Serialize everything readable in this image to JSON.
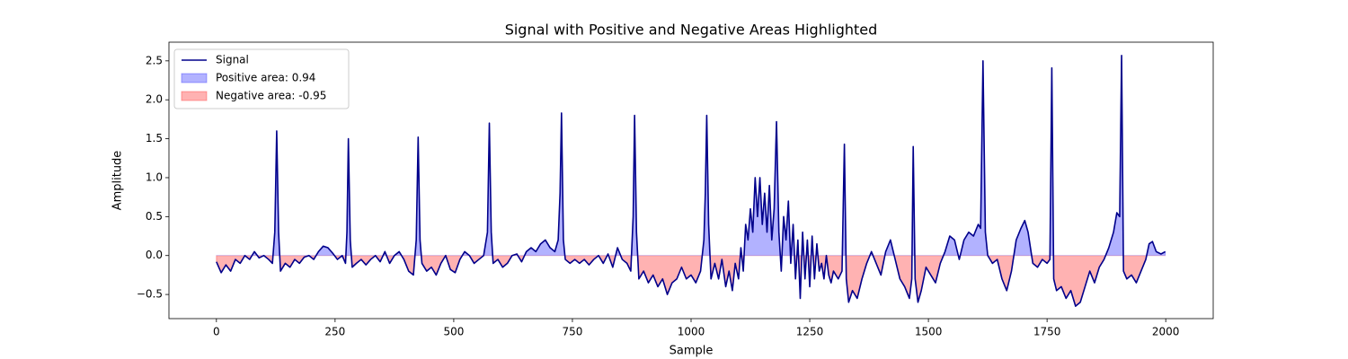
{
  "chart_data": {
    "type": "line",
    "title": "Signal with Positive and Negative Areas Highlighted",
    "xlabel": "Sample",
    "ylabel": "Amplitude",
    "x": [
      0,
      10,
      20,
      30,
      40,
      50,
      60,
      70,
      80,
      90,
      100,
      110,
      118,
      123,
      127,
      131,
      135,
      145,
      155,
      165,
      175,
      185,
      195,
      205,
      215,
      225,
      235,
      245,
      255,
      265,
      272,
      275,
      278,
      282,
      286,
      295,
      305,
      315,
      325,
      335,
      345,
      355,
      365,
      375,
      385,
      395,
      405,
      415,
      421,
      425,
      429,
      433,
      443,
      453,
      463,
      473,
      483,
      493,
      503,
      513,
      523,
      533,
      543,
      553,
      563,
      571,
      575,
      579,
      583,
      593,
      603,
      613,
      623,
      633,
      643,
      653,
      663,
      673,
      683,
      693,
      703,
      713,
      720,
      724,
      727,
      731,
      735,
      745,
      755,
      765,
      775,
      785,
      795,
      805,
      815,
      825,
      835,
      845,
      855,
      865,
      873,
      878,
      881,
      885,
      890,
      900,
      910,
      920,
      930,
      940,
      950,
      960,
      970,
      980,
      990,
      1000,
      1010,
      1020,
      1027,
      1030,
      1033,
      1037,
      1042,
      1050,
      1058,
      1065,
      1073,
      1080,
      1087,
      1093,
      1100,
      1105,
      1110,
      1115,
      1120,
      1125,
      1130,
      1135,
      1140,
      1145,
      1150,
      1155,
      1160,
      1165,
      1170,
      1175,
      1180,
      1185,
      1190,
      1195,
      1200,
      1205,
      1210,
      1215,
      1220,
      1225,
      1230,
      1235,
      1240,
      1245,
      1250,
      1255,
      1260,
      1265,
      1270,
      1275,
      1280,
      1285,
      1290,
      1295,
      1300,
      1310,
      1318,
      1323,
      1327,
      1332,
      1340,
      1350,
      1360,
      1370,
      1380,
      1390,
      1400,
      1410,
      1420,
      1430,
      1440,
      1450,
      1460,
      1465,
      1468,
      1472,
      1478,
      1485,
      1495,
      1505,
      1515,
      1525,
      1535,
      1545,
      1555,
      1565,
      1575,
      1585,
      1595,
      1605,
      1610,
      1615,
      1620,
      1625,
      1635,
      1645,
      1655,
      1665,
      1675,
      1685,
      1695,
      1703,
      1710,
      1720,
      1730,
      1740,
      1750,
      1756,
      1760,
      1764,
      1770,
      1780,
      1790,
      1800,
      1810,
      1820,
      1830,
      1840,
      1850,
      1860,
      1870,
      1880,
      1890,
      1897,
      1903,
      1907,
      1911,
      1918,
      1928,
      1938,
      1948,
      1958,
      1965,
      1972,
      1980,
      1990,
      1999
    ],
    "series": [
      {
        "name": "Signal",
        "color": "#00008b",
        "values": [
          -0.08,
          -0.22,
          -0.12,
          -0.2,
          -0.05,
          -0.1,
          0.0,
          -0.05,
          0.05,
          -0.03,
          0.0,
          -0.05,
          -0.1,
          0.3,
          1.6,
          0.3,
          -0.2,
          -0.1,
          -0.15,
          -0.05,
          -0.1,
          -0.02,
          0.0,
          -0.05,
          0.05,
          0.12,
          0.1,
          0.03,
          -0.05,
          0.0,
          -0.1,
          0.3,
          1.5,
          0.2,
          -0.15,
          -0.1,
          -0.05,
          -0.12,
          -0.05,
          0.0,
          -0.08,
          0.05,
          -0.1,
          0.0,
          0.05,
          -0.05,
          -0.2,
          -0.25,
          0.2,
          1.52,
          0.2,
          -0.1,
          -0.2,
          -0.15,
          -0.25,
          -0.1,
          0.0,
          -0.18,
          -0.22,
          -0.05,
          0.05,
          0.0,
          -0.1,
          -0.05,
          0.0,
          0.3,
          1.7,
          0.3,
          -0.1,
          -0.05,
          -0.15,
          -0.1,
          0.0,
          0.02,
          -0.08,
          0.05,
          0.1,
          0.05,
          0.15,
          0.2,
          0.1,
          0.05,
          0.2,
          0.8,
          1.83,
          0.2,
          -0.05,
          -0.1,
          -0.05,
          -0.1,
          -0.05,
          -0.12,
          -0.05,
          0.0,
          -0.1,
          0.02,
          -0.15,
          0.1,
          -0.05,
          -0.1,
          -0.2,
          0.5,
          1.8,
          0.3,
          -0.3,
          -0.2,
          -0.35,
          -0.25,
          -0.4,
          -0.3,
          -0.5,
          -0.35,
          -0.3,
          -0.15,
          -0.3,
          -0.25,
          -0.35,
          -0.2,
          0.2,
          0.8,
          1.8,
          0.4,
          -0.3,
          -0.1,
          -0.3,
          -0.05,
          -0.4,
          -0.2,
          -0.45,
          -0.1,
          -0.3,
          0.1,
          -0.2,
          0.4,
          0.2,
          0.6,
          0.3,
          1.0,
          0.5,
          1.0,
          0.4,
          0.8,
          0.3,
          0.9,
          0.2,
          0.6,
          1.72,
          0.3,
          -0.2,
          0.5,
          0.2,
          0.7,
          -0.1,
          0.4,
          -0.3,
          0.2,
          -0.55,
          0.3,
          -0.3,
          0.2,
          -0.4,
          0.25,
          -0.3,
          0.15,
          -0.2,
          -0.1,
          -0.3,
          0.0,
          -0.25,
          -0.35,
          -0.2,
          -0.3,
          -0.2,
          1.43,
          -0.3,
          -0.6,
          -0.45,
          -0.55,
          -0.3,
          -0.1,
          0.05,
          -0.1,
          -0.25,
          0.05,
          0.2,
          -0.05,
          -0.3,
          -0.4,
          -0.55,
          -0.3,
          1.4,
          -0.3,
          -0.6,
          -0.45,
          -0.15,
          -0.25,
          -0.35,
          -0.1,
          0.05,
          0.25,
          0.2,
          -0.05,
          0.2,
          0.3,
          0.25,
          0.4,
          0.35,
          2.5,
          0.3,
          0.0,
          -0.1,
          -0.05,
          -0.3,
          -0.45,
          -0.2,
          0.2,
          0.35,
          0.45,
          0.3,
          -0.1,
          -0.15,
          -0.05,
          -0.1,
          -0.05,
          2.41,
          -0.3,
          -0.45,
          -0.4,
          -0.55,
          -0.45,
          -0.65,
          -0.6,
          -0.4,
          -0.2,
          -0.35,
          -0.15,
          -0.05,
          0.1,
          0.3,
          0.55,
          0.5,
          2.57,
          -0.2,
          -0.3,
          -0.25,
          -0.35,
          -0.2,
          -0.05,
          0.15,
          0.18,
          0.05,
          0.02,
          0.05
        ]
      }
    ],
    "fills": [
      {
        "name": "Positive area: 0.94",
        "color": "#0000ff",
        "side": "positive"
      },
      {
        "name": "Negative area: -0.95",
        "color": "#ff0000",
        "side": "negative"
      }
    ],
    "xlim": [
      -100,
      2100
    ],
    "xticks": [
      0,
      250,
      500,
      750,
      1000,
      1250,
      1500,
      1750,
      2000
    ],
    "ylim": [
      -0.81,
      2.74
    ],
    "yticks": [
      {
        "value": -0.5,
        "label": "−0.5"
      },
      {
        "value": 0,
        "label": "0.0"
      },
      0.5,
      {
        "value": 1,
        "label": "1.0"
      },
      1.5,
      {
        "value": 2,
        "label": "2.0"
      },
      2.5
    ],
    "legend": "upper left"
  }
}
